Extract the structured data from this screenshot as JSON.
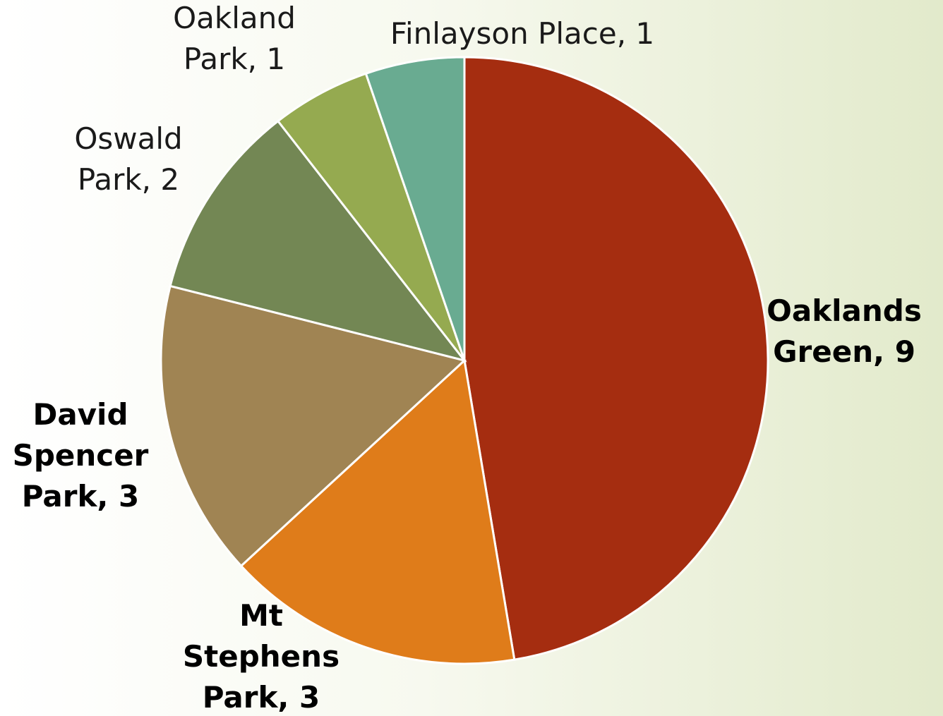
{
  "chart_data": {
    "type": "pie",
    "values": [
      9,
      3,
      3,
      2,
      1,
      1
    ],
    "value_labels": [
      "Oaklands Green, 9",
      "Mt Stephens Park, 3",
      "David Spencer Park, 3",
      "Oswald Park, 2",
      "Oakland Park, 1",
      "Finlayson Place, 1"
    ],
    "colors": [
      "#a52d10",
      "#df7c1a",
      "#a08453",
      "#738754",
      "#95aa50",
      "#69ab91"
    ],
    "label_bold": [
      true,
      true,
      true,
      false,
      false,
      false
    ]
  }
}
